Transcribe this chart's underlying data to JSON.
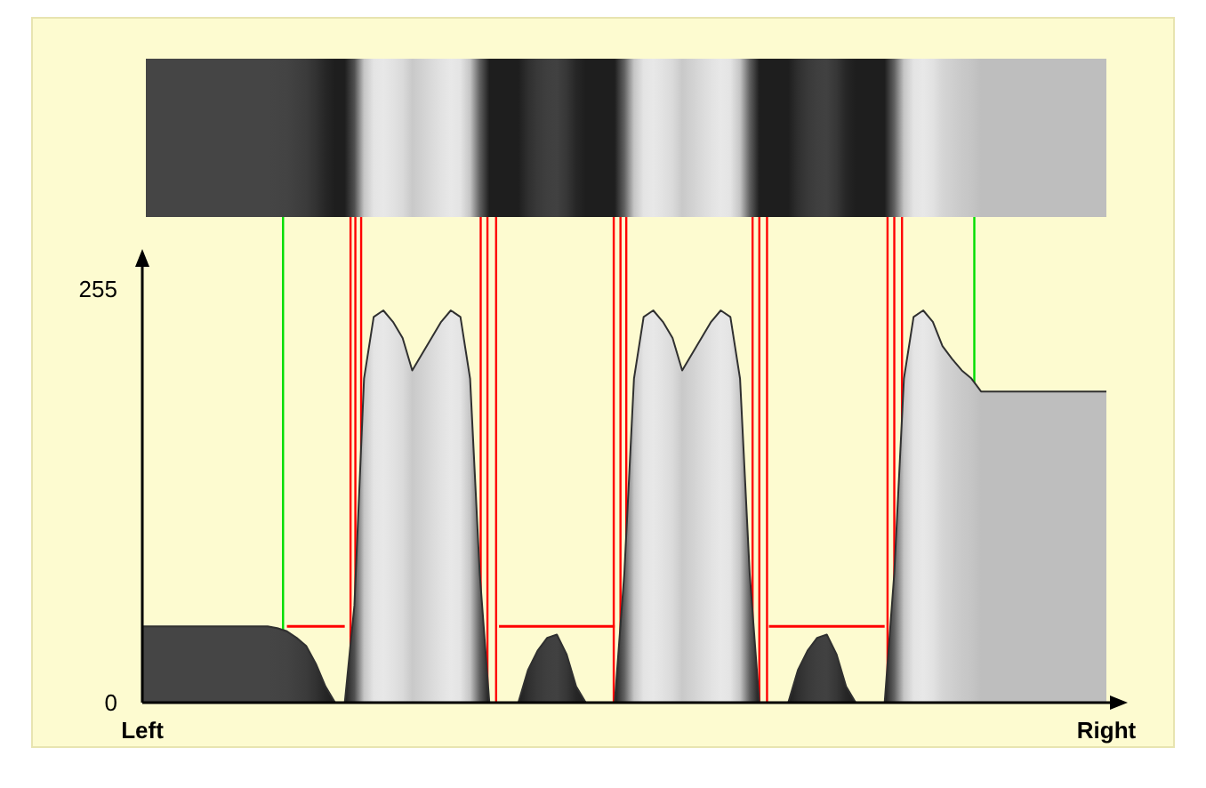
{
  "chart_data": {
    "type": "area",
    "ylim": [
      0,
      270
    ],
    "yticks": [
      0,
      255
    ],
    "grid": false,
    "categories": [
      "Left",
      null,
      null,
      null,
      null,
      null,
      null,
      null,
      null,
      null,
      null,
      null,
      null,
      null,
      null,
      null,
      null,
      null,
      null,
      null,
      null,
      null,
      null,
      null,
      null,
      null,
      null,
      null,
      null,
      null,
      null,
      null,
      null,
      null,
      null,
      null,
      null,
      null,
      null,
      null,
      null,
      null,
      null,
      null,
      null,
      null,
      null,
      null,
      null,
      null,
      null,
      null,
      null,
      null,
      null,
      null,
      null,
      null,
      null,
      null,
      null,
      null,
      null,
      null,
      null,
      null,
      null,
      null,
      null,
      null,
      null,
      null,
      null,
      null,
      null,
      null,
      null,
      null,
      null,
      null,
      null,
      null,
      null,
      null,
      null,
      null,
      null,
      null,
      null,
      null,
      null,
      null,
      null,
      null,
      null,
      null,
      null,
      null,
      null,
      null,
      "Right"
    ],
    "series": [
      {
        "color": "#303030",
        "values": [
          47,
          47,
          47,
          47,
          47,
          47,
          47,
          47,
          47,
          47,
          47,
          47,
          47,
          47,
          46,
          44,
          40,
          35,
          24,
          10,
          0,
          0,
          60,
          200,
          238,
          242,
          235,
          225,
          205,
          215,
          225,
          235,
          242,
          238,
          200,
          80,
          0,
          0,
          0,
          0,
          20,
          32,
          40,
          42,
          30,
          10,
          0,
          0,
          0,
          0,
          80,
          200,
          238,
          242,
          235,
          225,
          205,
          215,
          225,
          235,
          242,
          238,
          200,
          80,
          0,
          0,
          0,
          0,
          20,
          32,
          40,
          42,
          30,
          10,
          0,
          0,
          0,
          0,
          80,
          200,
          238,
          242,
          235,
          220,
          212,
          205,
          200,
          192,
          192,
          192,
          192,
          192,
          192,
          192,
          192,
          192,
          192,
          192,
          192,
          192,
          192
        ]
      },
      {
        "type": "line",
        "color": "#ff0000",
        "values": [
          null,
          null,
          null,
          null,
          null,
          null,
          null,
          null,
          null,
          null,
          null,
          null,
          null,
          null,
          null,
          47,
          47,
          47,
          47,
          47,
          47,
          47,
          null,
          null,
          null,
          null,
          null,
          null,
          null,
          null,
          null,
          null,
          null,
          null,
          null,
          null,
          null,
          47,
          47,
          47,
          47,
          47,
          47,
          47,
          47,
          47,
          47,
          47,
          47,
          47,
          null,
          null,
          null,
          null,
          null,
          null,
          null,
          null,
          null,
          null,
          null,
          null,
          null,
          null,
          null,
          47,
          47,
          47,
          47,
          47,
          47,
          47,
          47,
          47,
          47,
          47,
          47,
          47,
          null,
          null,
          null,
          null,
          null,
          null,
          null,
          null,
          null,
          null,
          null,
          null,
          null,
          null,
          null,
          null,
          null,
          null,
          null,
          null,
          null,
          null,
          null
        ]
      }
    ]
  }
}
